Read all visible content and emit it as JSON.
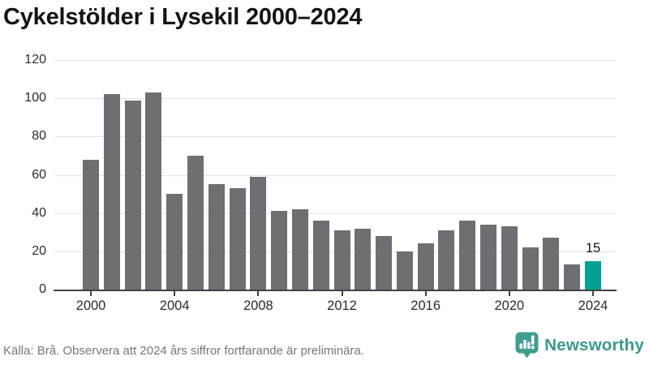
{
  "title": "Cykelstölder i Lysekil 2000–2024",
  "footer": {
    "source": "Källa: Brå. Observera att 2024 års siffror fortfarande är preliminära.",
    "brand": "Newsworthy",
    "brand_color": "#3a9a8b"
  },
  "chart_data": {
    "type": "bar",
    "title": "Cykelstölder i Lysekil 2000–2024",
    "categories": [
      "2000",
      "2001",
      "2002",
      "2003",
      "2004",
      "2005",
      "2006",
      "2007",
      "2008",
      "2009",
      "2010",
      "2011",
      "2012",
      "2013",
      "2014",
      "2015",
      "2016",
      "2017",
      "2018",
      "2019",
      "2020",
      "2021",
      "2022",
      "2023",
      "2024"
    ],
    "values": [
      68,
      102,
      99,
      103,
      50,
      70,
      55,
      53,
      59,
      41,
      42,
      36,
      31,
      32,
      28,
      20,
      24,
      31,
      36,
      34,
      33,
      22,
      27,
      13,
      15
    ],
    "bar_color": "#6e6e73",
    "highlight": {
      "category": "2024",
      "color": "#00a294"
    },
    "annotations": [
      {
        "category": "2024",
        "text": "15"
      }
    ],
    "y_ticks": [
      0,
      20,
      40,
      60,
      80,
      100,
      120
    ],
    "x_tick_labels": [
      "2000",
      "2004",
      "2008",
      "2012",
      "2016",
      "2020",
      "2024"
    ],
    "ylim": [
      0,
      120
    ],
    "xlabel": "",
    "ylabel": "",
    "grid": "horizontal",
    "legend": "none",
    "gridline_color": "#e3e3e3",
    "axis_color": "#404045"
  }
}
